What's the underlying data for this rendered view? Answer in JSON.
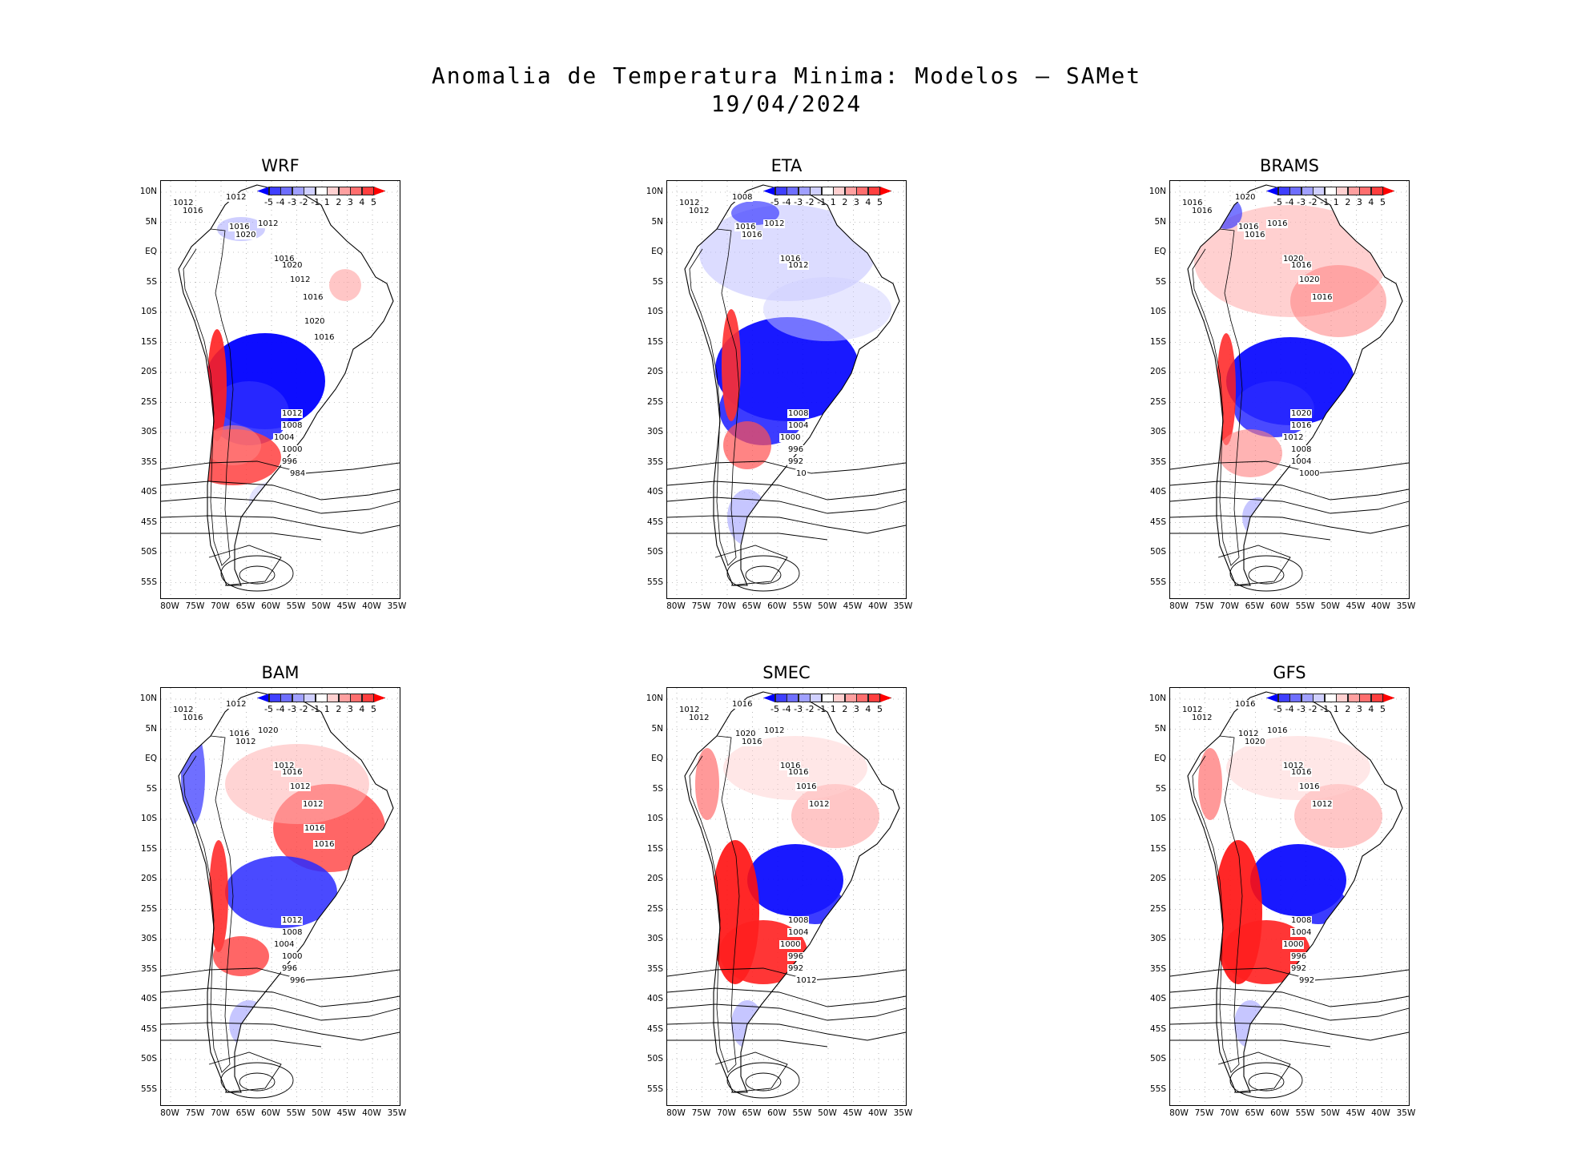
{
  "title_line1": "Anomalia de Temperatura Minima: Modelos — SAMet",
  "title_line2": "19/04/2024",
  "lat_labels": [
    "10N",
    "5N",
    "EQ",
    "5S",
    "10S",
    "15S",
    "20S",
    "25S",
    "30S",
    "35S",
    "40S",
    "45S",
    "50S",
    "55S"
  ],
  "lon_labels": [
    "80W",
    "75W",
    "70W",
    "65W",
    "60W",
    "55W",
    "50W",
    "45W",
    "40W",
    "35W"
  ],
  "colorbar": {
    "labels": [
      "-5",
      "-4",
      "-3",
      "-2",
      "-1",
      "1",
      "2",
      "3",
      "4",
      "5"
    ],
    "colors": [
      "#0000ff",
      "#3f3fff",
      "#6e6eff",
      "#a0a0ff",
      "#d0d0ff",
      "#ffffff",
      "#ffd0d0",
      "#ffa0a0",
      "#ff6e6e",
      "#ff3f3f",
      "#ff0000"
    ]
  },
  "panels": [
    {
      "name": "WRF",
      "pattern": "cold-south-warm-andes",
      "isobars": [
        "1012",
        "1016",
        "1012",
        "1016",
        "1020",
        "1012",
        "1016",
        "1020",
        "1012",
        "1016",
        "1020",
        "1016",
        "1012",
        "1008",
        "1004",
        "1000",
        "996",
        "984"
      ]
    },
    {
      "name": "ETA",
      "pattern": "cold-wide",
      "isobars": [
        "1012",
        "1012",
        "1008",
        "1016",
        "1016",
        "1012",
        "1016",
        "1012",
        "1008",
        "1004",
        "1000",
        "996",
        "992",
        "10"
      ]
    },
    {
      "name": "BRAMS",
      "pattern": "warm-north-cold-south",
      "isobars": [
        "1016",
        "1016",
        "1020",
        "1016",
        "1016",
        "1016",
        "1020",
        "1016",
        "1020",
        "1016",
        "1020",
        "1016",
        "1012",
        "1008",
        "1004",
        "1000"
      ]
    },
    {
      "name": "BAM",
      "pattern": "warm-northeast",
      "isobars": [
        "1012",
        "1016",
        "1012",
        "1016",
        "1012",
        "1020",
        "1012",
        "1016",
        "1012",
        "1012",
        "1016",
        "1016",
        "1012",
        "1008",
        "1004",
        "1000",
        "996",
        "996"
      ]
    },
    {
      "name": "SMEC",
      "pattern": "warm-argentina",
      "isobars": [
        "1012",
        "1012",
        "1016",
        "1020",
        "1016",
        "1012",
        "1016",
        "1016",
        "1016",
        "1012",
        "1008",
        "1004",
        "1000",
        "996",
        "992",
        "1012"
      ]
    },
    {
      "name": "GFS",
      "pattern": "warm-argentina",
      "isobars": [
        "1012",
        "1012",
        "1016",
        "1012",
        "1020",
        "1016",
        "1012",
        "1016",
        "1016",
        "1012",
        "1008",
        "1004",
        "1000",
        "996",
        "992",
        "992"
      ]
    }
  ]
}
